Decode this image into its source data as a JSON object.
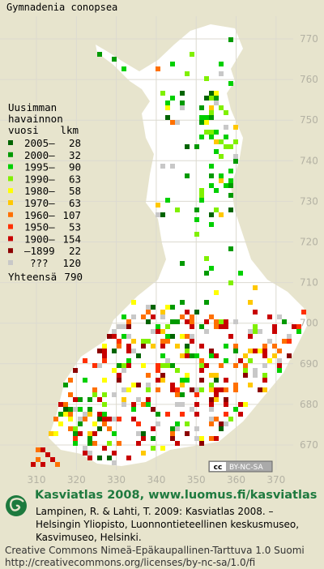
{
  "title": "Gymnadenia conopsea",
  "legend": {
    "heading": [
      "Uusimman",
      "havainnon",
      "vuosi"
    ],
    "count_heading": "lkm",
    "rows": [
      {
        "label": "2005–",
        "count": 28,
        "color": "#006400"
      },
      {
        "label": "2000–",
        "count": 32,
        "color": "#009a00"
      },
      {
        "label": "1995–",
        "count": 90,
        "color": "#00d000"
      },
      {
        "label": "1990–",
        "count": 63,
        "color": "#80f000"
      },
      {
        "label": "1980–",
        "count": 58,
        "color": "#ffff00"
      },
      {
        "label": "1970–",
        "count": 63,
        "color": "#ffc800"
      },
      {
        "label": "1960–",
        "count": 107,
        "color": "#ff7000"
      },
      {
        "label": "1950–",
        "count": 53,
        "color": "#ff3000"
      },
      {
        "label": "1900–",
        "count": 154,
        "color": "#c80000"
      },
      {
        "label": "–1899",
        "count": 22,
        "color": "#8c0000"
      },
      {
        "label": "???",
        "count": 120,
        "color": "#c8c8c8"
      }
    ],
    "total_label": "Yhteensä",
    "total": 790
  },
  "map": {
    "y_labels": [
      "770",
      "760",
      "750",
      "740",
      "730",
      "720",
      "710",
      "700",
      "690",
      "680",
      "670"
    ],
    "x_labels": [
      "310",
      "320",
      "330",
      "340",
      "350",
      "360",
      "370"
    ]
  },
  "badge": {
    "cc": "cc",
    "terms": "BY-NC-SA"
  },
  "footer": {
    "site": "Kasviatlas 2008, www.luomus.fi/kasviatlas",
    "citation": [
      "Lampinen, R. & Lahti, T. 2009: Kasviatlas 2008. –",
      "Helsingin Yliopisto, Luonnontieteellinen keskusmuseo,",
      "Kasvimuseo, Helsinki."
    ],
    "license": [
      "Creative Commons Nimeä-Epäkaupallinen-Tarttuva 1.0 Suomi",
      "http://creativecommons.org/licenses/by-nc-sa/1.0/fi"
    ]
  }
}
